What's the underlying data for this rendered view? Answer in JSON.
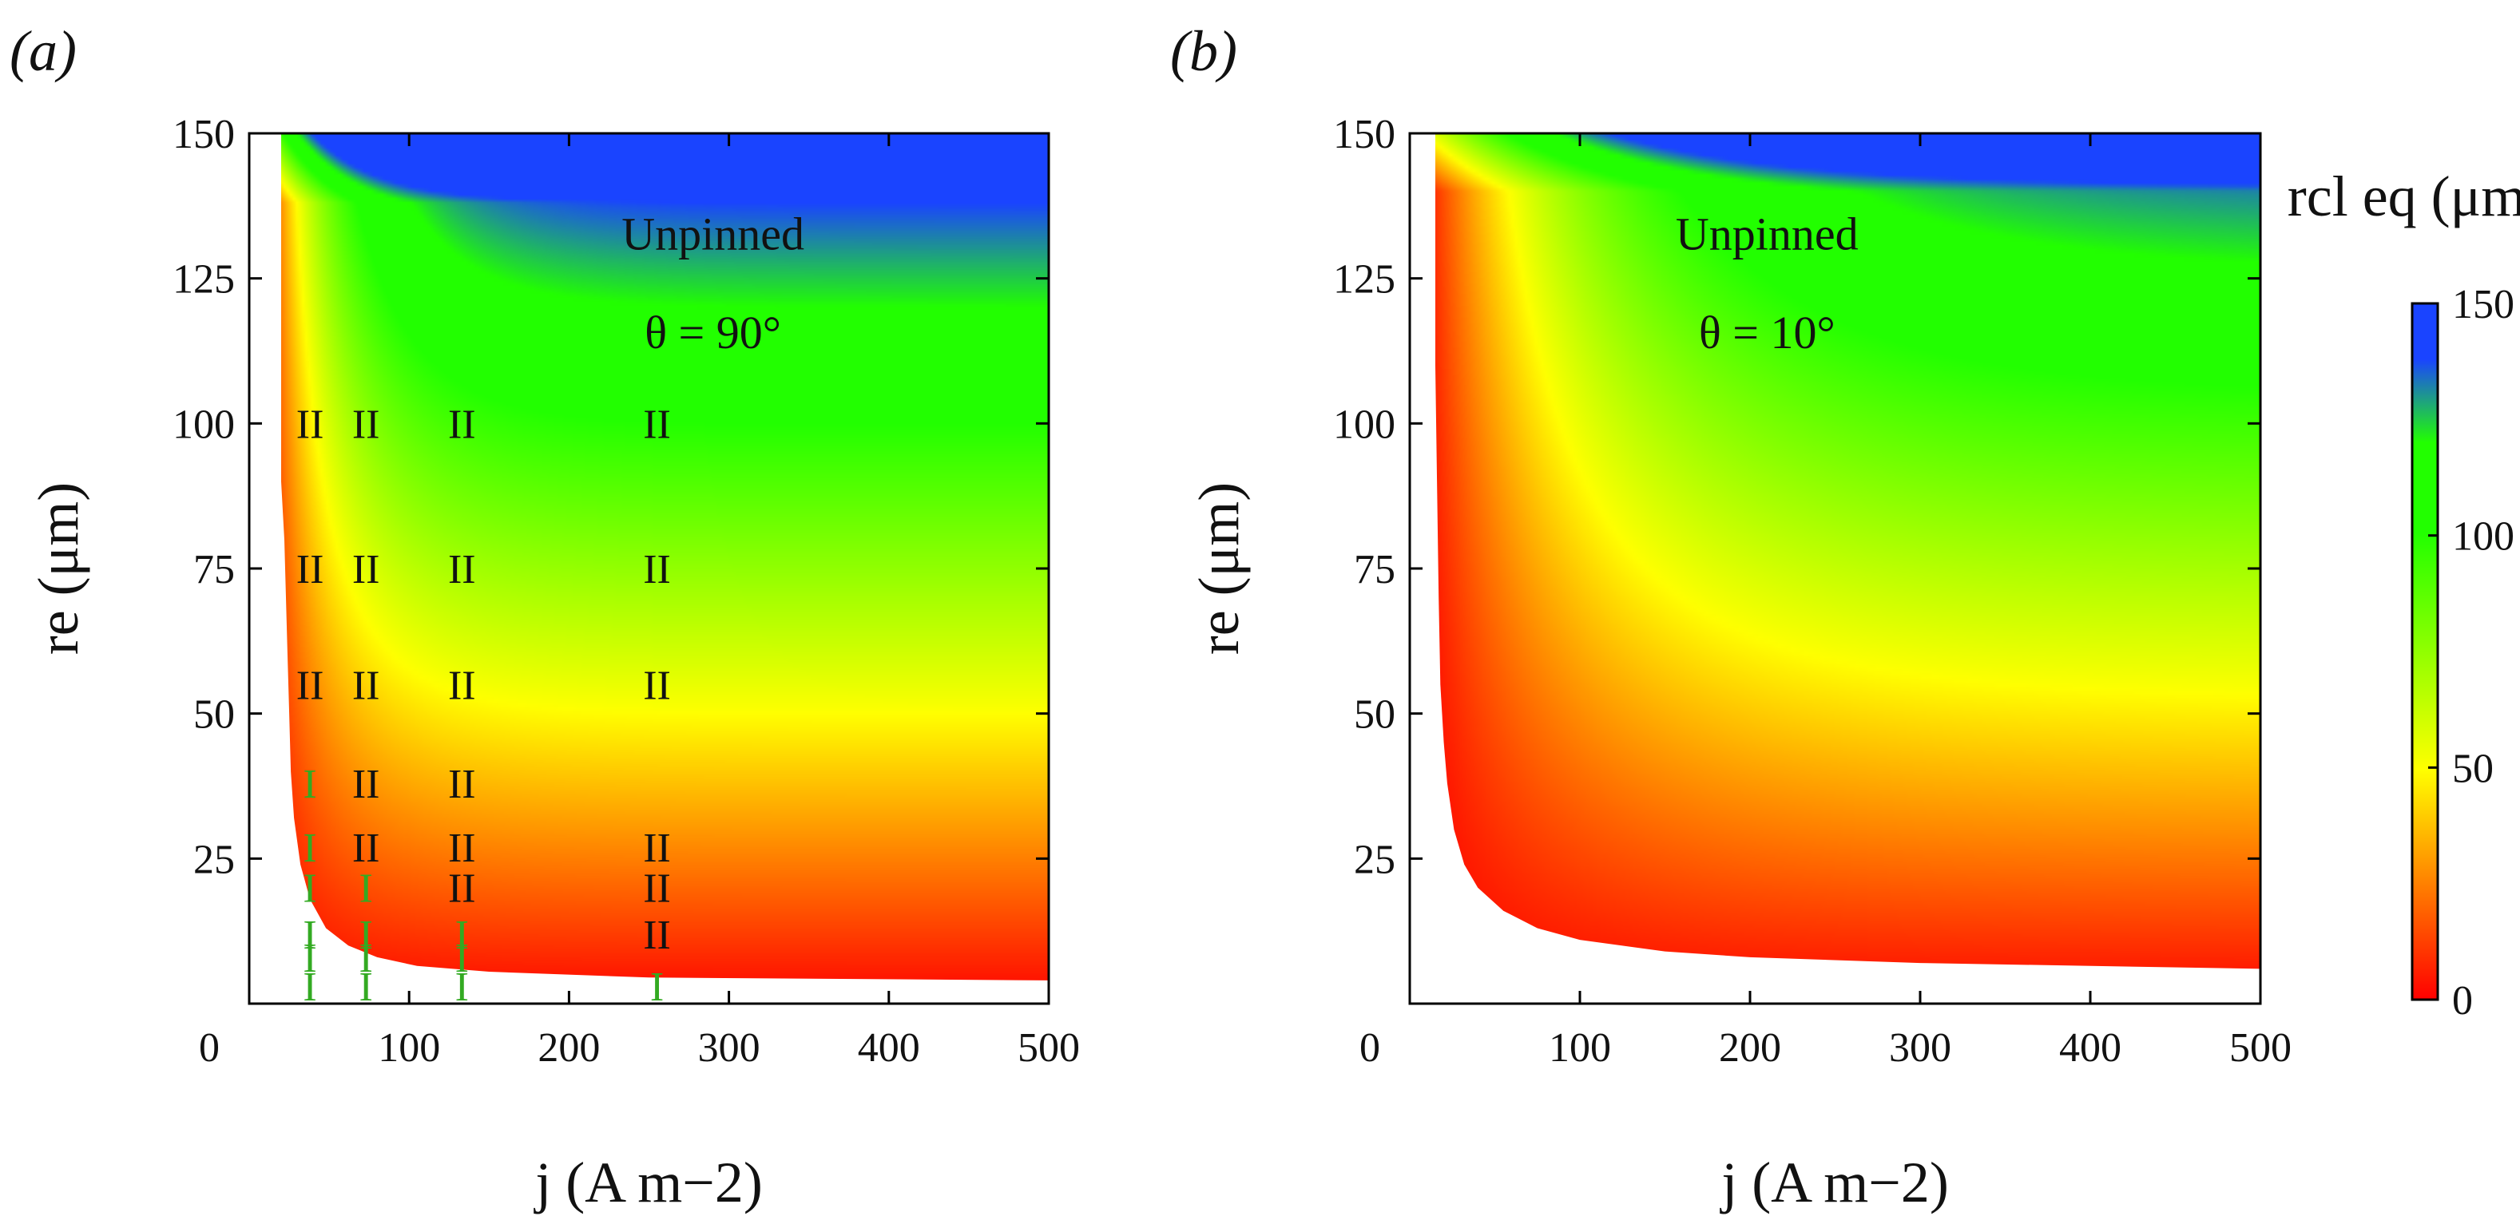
{
  "chart_data": [
    {
      "type": "heatmap",
      "panel_label": "(a)",
      "annotation_lines": [
        "Unpinned",
        "θ = 90°"
      ],
      "xlabel": "j (A m−2)",
      "ylabel": "re (μm)",
      "xlim": [
        0,
        500
      ],
      "ylim": [
        0,
        150
      ],
      "xticks": [
        0,
        100,
        200,
        300,
        400,
        500
      ],
      "yticks": [
        25,
        50,
        75,
        100,
        125,
        150
      ],
      "theta_deg": 90,
      "boundary": [
        [
          20,
          150
        ],
        [
          20,
          112
        ],
        [
          20,
          90
        ],
        [
          22,
          80
        ],
        [
          23,
          70
        ],
        [
          24,
          60
        ],
        [
          25,
          50
        ],
        [
          26,
          40
        ],
        [
          28,
          32
        ],
        [
          32,
          24
        ],
        [
          38,
          18
        ],
        [
          48,
          13
        ],
        [
          62,
          10
        ],
        [
          80,
          8
        ],
        [
          105,
          6.5
        ],
        [
          150,
          5.5
        ],
        [
          250,
          4.5
        ],
        [
          500,
          4
        ]
      ],
      "regions": [
        {
          "j": 38,
          "re": [
            3,
            8,
            12,
            20,
            27,
            38
          ],
          "label": "I"
        },
        {
          "j": 38,
          "re": [
            55,
            75,
            100
          ],
          "label": "II"
        },
        {
          "j": 73,
          "re": [
            3,
            8,
            12,
            20
          ],
          "label": "I"
        },
        {
          "j": 73,
          "re": [
            27,
            38,
            55,
            75,
            100
          ],
          "label": "II"
        },
        {
          "j": 133,
          "re": [
            3,
            8,
            12
          ],
          "label": "I"
        },
        {
          "j": 133,
          "re": [
            20,
            27,
            38,
            55,
            75,
            100
          ],
          "label": "II"
        },
        {
          "j": 255,
          "re": [
            3
          ],
          "label": "I"
        },
        {
          "j": 255,
          "re": [
            12,
            20,
            27,
            55,
            75,
            100
          ],
          "label": "II"
        }
      ]
    },
    {
      "type": "heatmap",
      "panel_label": "(b)",
      "annotation_lines": [
        "Unpinned",
        "θ = 10°"
      ],
      "xlabel": "j (A m−2)",
      "ylabel": "re (μm)",
      "xlim": [
        0,
        500
      ],
      "ylim": [
        0,
        150
      ],
      "xticks": [
        0,
        100,
        200,
        300,
        400,
        500
      ],
      "yticks": [
        25,
        50,
        75,
        100,
        125,
        150
      ],
      "theta_deg": 10,
      "boundary": [
        [
          15,
          150
        ],
        [
          15,
          110
        ],
        [
          16,
          90
        ],
        [
          17,
          70
        ],
        [
          18,
          55
        ],
        [
          20,
          45
        ],
        [
          22,
          38
        ],
        [
          26,
          30
        ],
        [
          32,
          24
        ],
        [
          40,
          20
        ],
        [
          55,
          16
        ],
        [
          75,
          13
        ],
        [
          100,
          11
        ],
        [
          150,
          9
        ],
        [
          200,
          8
        ],
        [
          300,
          7
        ],
        [
          500,
          6
        ]
      ],
      "colorbar": {
        "title": "rcl eq (μm)",
        "range": [
          0,
          150
        ],
        "ticks": [
          0,
          50,
          100,
          150
        ],
        "colors": [
          "#ff0000",
          "#ffff00",
          "#22ff00",
          "#1a44ff"
        ]
      }
    }
  ]
}
